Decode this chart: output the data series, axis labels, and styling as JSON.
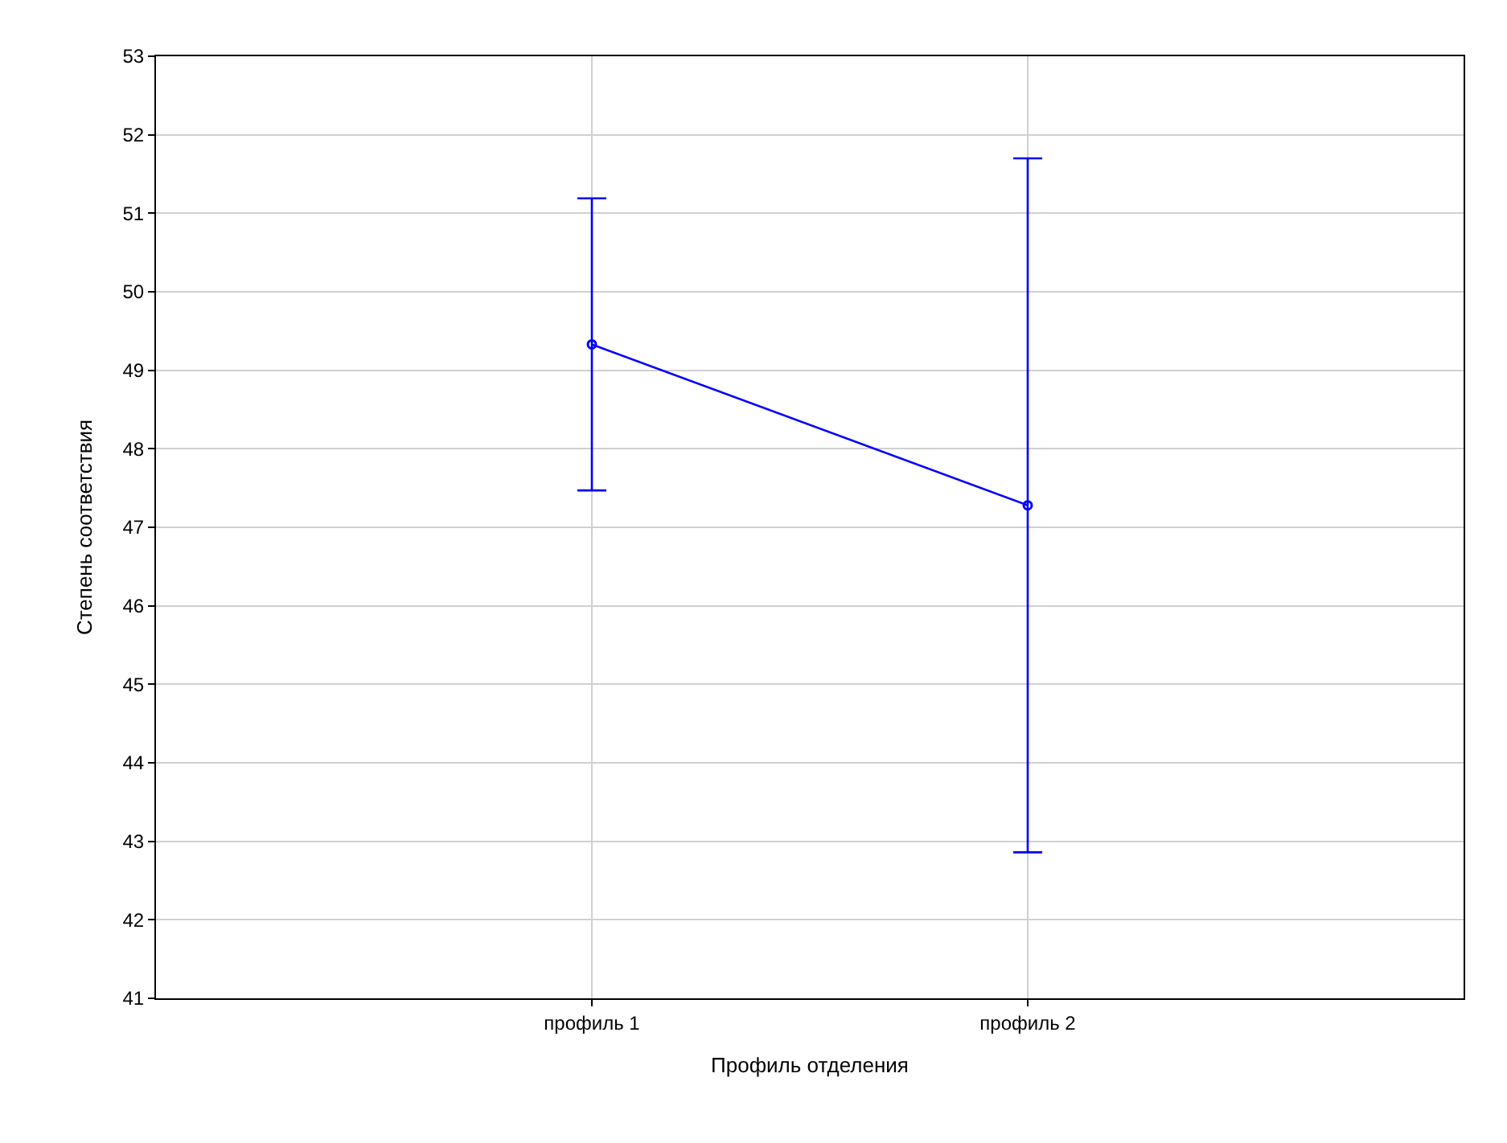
{
  "chart_data": {
    "type": "line",
    "xlabel": "Профиль отделения",
    "ylabel": "Степень соответствия",
    "categories": [
      "профиль 1",
      "профиль 2"
    ],
    "series": [
      {
        "color": "#0000ff",
        "values": [
          49.33,
          47.28
        ],
        "errors": [
          1.86,
          4.42
        ]
      }
    ],
    "ylim": [
      41,
      53
    ],
    "yticks": [
      41,
      42,
      43,
      44,
      45,
      46,
      47,
      48,
      49,
      50,
      51,
      52,
      53
    ],
    "grid": true,
    "marker": "circle",
    "line_style": "solid"
  }
}
